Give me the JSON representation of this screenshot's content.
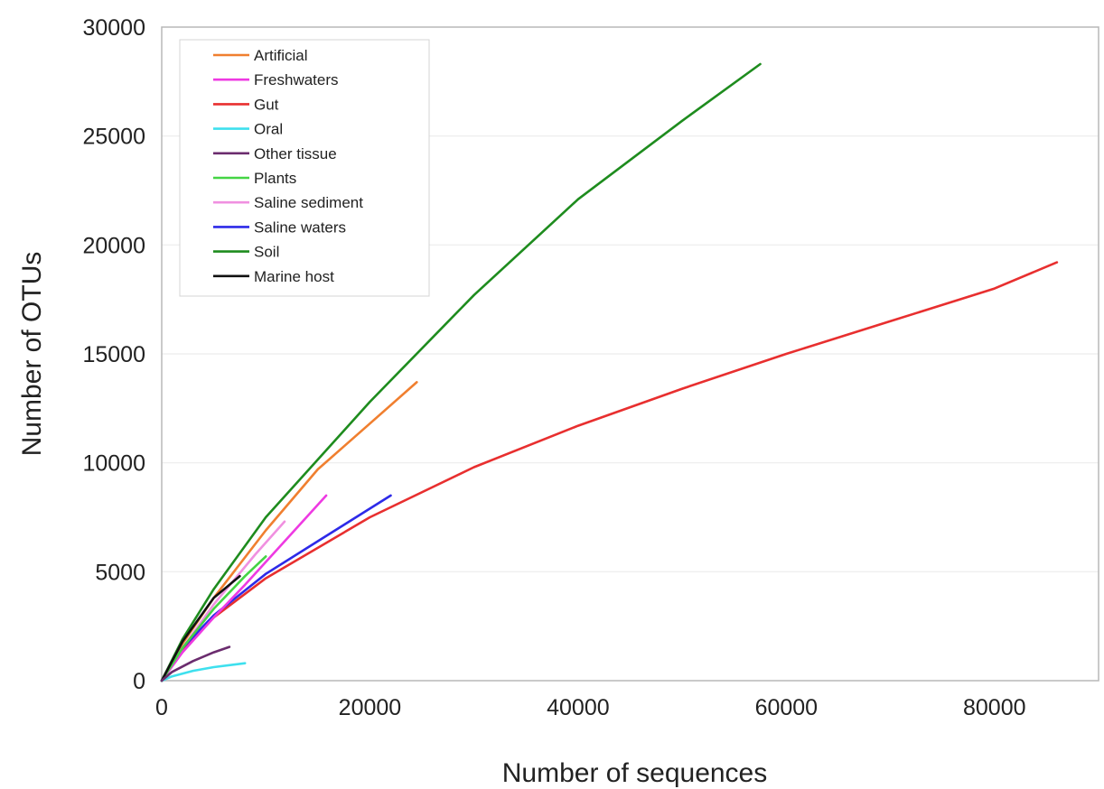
{
  "chart_data": {
    "type": "line",
    "xlabel": "Number of sequences",
    "ylabel": "Number of OTUs",
    "xlim": [
      0,
      90000
    ],
    "ylim": [
      0,
      30000
    ],
    "xticks": [
      0,
      20000,
      40000,
      60000,
      80000
    ],
    "yticks": [
      0,
      5000,
      10000,
      15000,
      20000,
      25000,
      30000
    ],
    "grid": "horizontal",
    "legend_position": "top-left",
    "series": [
      {
        "name": "Artificial",
        "color": "#f07f2f",
        "x": [
          0,
          2000,
          5000,
          10000,
          15000,
          20000,
          24500
        ],
        "y": [
          0,
          1700,
          3800,
          6900,
          9700,
          11800,
          13700
        ]
      },
      {
        "name": "Freshwaters",
        "color": "#ee3ae2",
        "x": [
          0,
          2000,
          5000,
          8000,
          12000,
          15800
        ],
        "y": [
          0,
          1300,
          2900,
          4400,
          6500,
          8500
        ]
      },
      {
        "name": "Gut",
        "color": "#e82f2f",
        "x": [
          0,
          2000,
          5000,
          10000,
          20000,
          30000,
          40000,
          50000,
          60000,
          70000,
          80000,
          86000
        ],
        "y": [
          0,
          1400,
          2900,
          4700,
          7500,
          9800,
          11700,
          13400,
          15000,
          16500,
          18000,
          19200
        ]
      },
      {
        "name": "Oral",
        "color": "#3ee0ee",
        "x": [
          0,
          1000,
          3000,
          5000,
          8000
        ],
        "y": [
          0,
          200,
          450,
          620,
          800
        ]
      },
      {
        "name": "Other tissue",
        "color": "#6b2c6e",
        "x": [
          0,
          1000,
          3000,
          5000,
          6500
        ],
        "y": [
          0,
          400,
          900,
          1300,
          1550
        ]
      },
      {
        "name": "Plants",
        "color": "#44d444",
        "x": [
          0,
          2000,
          5000,
          8000,
          10000
        ],
        "y": [
          0,
          1500,
          3300,
          4800,
          5700
        ]
      },
      {
        "name": "Saline sediment",
        "color": "#f090e0",
        "x": [
          0,
          2000,
          5000,
          9000,
          11800
        ],
        "y": [
          0,
          1500,
          3500,
          5800,
          7300
        ]
      },
      {
        "name": "Saline waters",
        "color": "#2d2ae8",
        "x": [
          0,
          2000,
          5000,
          10000,
          15000,
          22000
        ],
        "y": [
          0,
          1500,
          3000,
          4900,
          6400,
          8500
        ]
      },
      {
        "name": "Soil",
        "color": "#1e8c1e",
        "x": [
          0,
          2000,
          5000,
          10000,
          20000,
          30000,
          40000,
          50000,
          57500
        ],
        "y": [
          0,
          1900,
          4200,
          7500,
          12800,
          17700,
          22100,
          25700,
          28300
        ]
      },
      {
        "name": "Marine host",
        "color": "#111111",
        "x": [
          0,
          2000,
          5000,
          7500
        ],
        "y": [
          0,
          1800,
          3800,
          4800
        ]
      }
    ]
  }
}
